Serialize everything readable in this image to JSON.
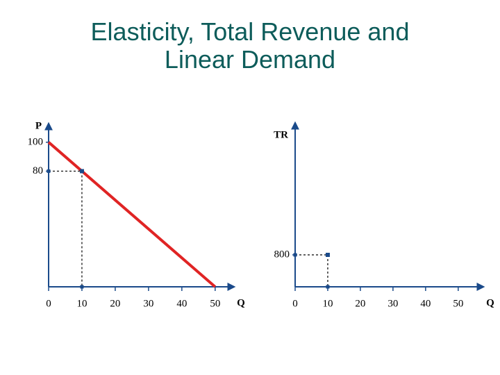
{
  "title": "Elasticity, Total Revenue and\nLinear Demand",
  "chart_data": [
    {
      "type": "line",
      "ylabel": "P",
      "xlabel": "Q",
      "x": [
        0,
        50
      ],
      "values": [
        100,
        0
      ],
      "color": "#e02424",
      "highlight": {
        "x": 10,
        "y": 80
      },
      "xlim": [
        0,
        54
      ],
      "ylim": [
        0,
        110
      ],
      "xticks": [
        0,
        10,
        20,
        30,
        40,
        50
      ],
      "yticks": [
        80,
        100
      ]
    },
    {
      "type": "scatter",
      "ylabel": "TR",
      "xlabel": "Q",
      "x": [
        10
      ],
      "values": [
        800
      ],
      "color": "#1a4a8a",
      "xlim": [
        0,
        56
      ],
      "ylim": [
        0,
        4000
      ],
      "xticks": [
        0,
        10,
        20,
        30,
        40,
        50
      ],
      "yticks": [
        800
      ]
    }
  ]
}
